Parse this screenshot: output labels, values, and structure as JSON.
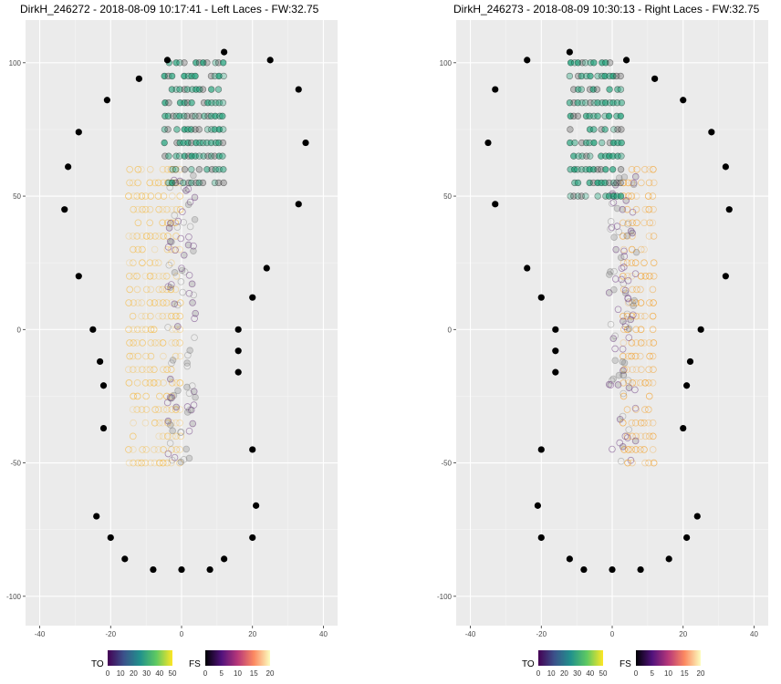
{
  "chart_data": [
    {
      "type": "scatter",
      "title": "DirkH_246272 - 2018-08-09 10:17:41 - Left Laces - FW:32.75",
      "xlim": [
        -44,
        44
      ],
      "ylim": [
        -111,
        116
      ],
      "x_ticks": [
        -40,
        -20,
        0,
        20,
        40
      ],
      "y_ticks": [
        -100,
        -50,
        0,
        50,
        100
      ],
      "grid": true,
      "outline": [
        [
          -33,
          45
        ],
        [
          -32,
          61
        ],
        [
          -29,
          74
        ],
        [
          -21,
          86
        ],
        [
          -12,
          94
        ],
        [
          -4,
          101
        ],
        [
          12,
          104
        ],
        [
          25,
          101
        ],
        [
          33,
          90
        ],
        [
          35,
          70
        ],
        [
          33,
          47
        ],
        [
          24,
          23
        ],
        [
          20,
          12
        ],
        [
          16,
          0
        ],
        [
          16,
          -8
        ],
        [
          16,
          -16
        ],
        [
          20,
          -45
        ],
        [
          21,
          -66
        ],
        [
          20,
          -78
        ],
        [
          12,
          -86
        ],
        [
          8,
          -90
        ],
        [
          0,
          -90
        ],
        [
          -8,
          -90
        ],
        [
          -16,
          -86
        ],
        [
          -20,
          -78
        ],
        [
          -24,
          -70
        ],
        [
          -22,
          -37
        ],
        [
          -22,
          -21
        ],
        [
          -23,
          -12
        ],
        [
          -25,
          0
        ],
        [
          -29,
          20
        ]
      ],
      "to_region": {
        "x_min": -5,
        "x_max": 12,
        "y_min": 55,
        "y_max": 104,
        "y_step": 5
      },
      "fs_region": {
        "x_min": -15,
        "x_max": 0,
        "y_min": -50,
        "y_max": 60,
        "y_step": 5
      },
      "to_color": "#21a17a",
      "fs_color": "#f5b73a"
    },
    {
      "type": "scatter",
      "title": "DirkH_246273 - 2018-08-09 10:30:13 - Right Laces - FW:32.75",
      "xlim": [
        -44,
        44
      ],
      "ylim": [
        -111,
        116
      ],
      "x_ticks": [
        -40,
        -20,
        0,
        20,
        40
      ],
      "y_ticks": [
        -100,
        -50,
        0,
        50,
        100
      ],
      "grid": true,
      "outline": [
        [
          -24,
          101
        ],
        [
          -12,
          104
        ],
        [
          4,
          101
        ],
        [
          12,
          94
        ],
        [
          20,
          86
        ],
        [
          28,
          74
        ],
        [
          32,
          61
        ],
        [
          33,
          45
        ],
        [
          32,
          20
        ],
        [
          25,
          0
        ],
        [
          22,
          -12
        ],
        [
          21,
          -21
        ],
        [
          20,
          -37
        ],
        [
          24,
          -70
        ],
        [
          21,
          -78
        ],
        [
          16,
          -86
        ],
        [
          8,
          -90
        ],
        [
          0,
          -90
        ],
        [
          -8,
          -90
        ],
        [
          -12,
          -86
        ],
        [
          -20,
          -78
        ],
        [
          -21,
          -66
        ],
        [
          -20,
          -45
        ],
        [
          -16,
          -16
        ],
        [
          -16,
          -8
        ],
        [
          -16,
          0
        ],
        [
          -20,
          12
        ],
        [
          -24,
          23
        ],
        [
          -33,
          47
        ],
        [
          -35,
          70
        ],
        [
          -33,
          90
        ]
      ],
      "to_region": {
        "x_min": -12,
        "x_max": 3,
        "y_min": 50,
        "y_max": 100,
        "y_step": 5
      },
      "fs_region": {
        "x_min": 3,
        "x_max": 12,
        "y_min": -50,
        "y_max": 60,
        "y_step": 5
      },
      "to_color": "#21a17a",
      "fs_color": "#f39c1f"
    }
  ],
  "legend": {
    "to": {
      "title": "TO",
      "ticks": [
        "0",
        "10",
        "20",
        "30",
        "40",
        "50"
      ],
      "colors": [
        "#440154",
        "#3b528b",
        "#21918c",
        "#5ec962",
        "#fde725"
      ]
    },
    "fs": {
      "title": "FS",
      "ticks": [
        "0",
        "5",
        "10",
        "15",
        "20"
      ],
      "colors": [
        "#000004",
        "#51127c",
        "#b73779",
        "#fc8961",
        "#fcfdbf"
      ]
    }
  }
}
